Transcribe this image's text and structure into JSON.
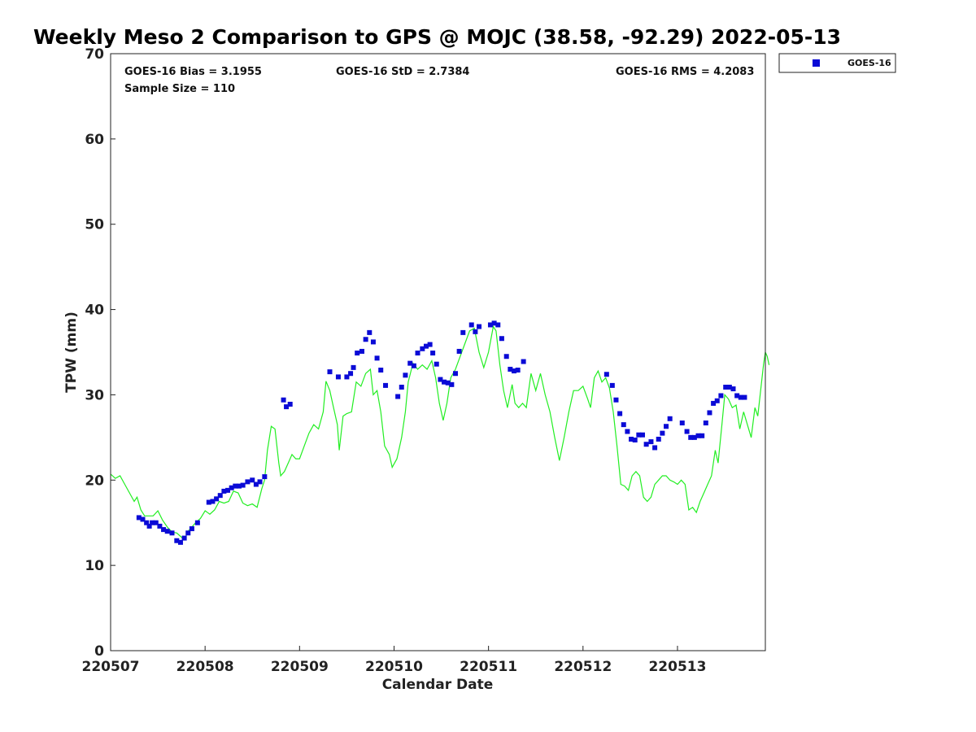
{
  "chart_data": {
    "type": "scatter",
    "title": "Weekly Meso 2 Comparison to GPS @ MOJC (38.58, -92.29) 2022-05-13",
    "xlabel": "Calendar Date",
    "ylabel": "TPW (mm)",
    "xlim": [
      220507.0,
      220513.93
    ],
    "ylim": [
      0,
      70
    ],
    "x_ticks": [
      "220507",
      "220508",
      "220509",
      "220510",
      "220511",
      "220512",
      "220513"
    ],
    "y_ticks": [
      0,
      10,
      20,
      30,
      40,
      50,
      60,
      70
    ],
    "grid": false,
    "legend_position": "top-right, outside plot",
    "stats": {
      "bias": "GOES-16 Bias = 3.1955",
      "std": "GOES-16 StD = 2.7384",
      "rms": "GOES-16 RMS = 4.2083",
      "sample": "Sample Size = 110"
    },
    "series": [
      {
        "name": "GOES-16",
        "kind": "scatter",
        "color": "#0a0ad6",
        "marker": "square",
        "points": [
          [
            220507.3,
            15.6
          ],
          [
            220507.34,
            15.4
          ],
          [
            220507.38,
            15.0
          ],
          [
            220507.41,
            14.6
          ],
          [
            220507.44,
            15.0
          ],
          [
            220507.48,
            15.0
          ],
          [
            220507.52,
            14.6
          ],
          [
            220507.56,
            14.2
          ],
          [
            220507.6,
            14.0
          ],
          [
            220507.65,
            13.8
          ],
          [
            220507.7,
            12.9
          ],
          [
            220507.74,
            12.7
          ],
          [
            220507.78,
            13.2
          ],
          [
            220507.82,
            13.8
          ],
          [
            220507.86,
            14.3
          ],
          [
            220507.92,
            15.0
          ],
          [
            220508.04,
            17.4
          ],
          [
            220508.08,
            17.5
          ],
          [
            220508.12,
            17.8
          ],
          [
            220508.16,
            18.2
          ],
          [
            220508.2,
            18.7
          ],
          [
            220508.24,
            18.8
          ],
          [
            220508.28,
            19.1
          ],
          [
            220508.32,
            19.3
          ],
          [
            220508.36,
            19.3
          ],
          [
            220508.4,
            19.4
          ],
          [
            220508.45,
            19.8
          ],
          [
            220508.5,
            20.0
          ],
          [
            220508.54,
            19.5
          ],
          [
            220508.58,
            19.8
          ],
          [
            220508.63,
            20.4
          ],
          [
            220508.83,
            29.4
          ],
          [
            220508.86,
            28.6
          ],
          [
            220508.9,
            28.9
          ],
          [
            220509.32,
            32.7
          ],
          [
            220509.41,
            32.1
          ],
          [
            220509.5,
            32.1
          ],
          [
            220509.54,
            32.5
          ],
          [
            220509.57,
            33.2
          ],
          [
            220509.61,
            34.9
          ],
          [
            220509.66,
            35.1
          ],
          [
            220509.7,
            36.5
          ],
          [
            220509.74,
            37.3
          ],
          [
            220509.78,
            36.2
          ],
          [
            220509.82,
            34.3
          ],
          [
            220509.86,
            32.9
          ],
          [
            220509.91,
            31.1
          ],
          [
            220510.04,
            29.8
          ],
          [
            220510.08,
            30.9
          ],
          [
            220510.12,
            32.3
          ],
          [
            220510.17,
            33.7
          ],
          [
            220510.21,
            33.4
          ],
          [
            220510.25,
            34.9
          ],
          [
            220510.3,
            35.4
          ],
          [
            220510.34,
            35.7
          ],
          [
            220510.38,
            35.9
          ],
          [
            220510.41,
            34.9
          ],
          [
            220510.45,
            33.6
          ],
          [
            220510.49,
            31.8
          ],
          [
            220510.53,
            31.5
          ],
          [
            220510.57,
            31.4
          ],
          [
            220510.61,
            31.2
          ],
          [
            220510.65,
            32.5
          ],
          [
            220510.69,
            35.1
          ],
          [
            220510.73,
            37.3
          ],
          [
            220510.82,
            38.2
          ],
          [
            220510.86,
            37.4
          ],
          [
            220510.9,
            38.0
          ],
          [
            220511.02,
            38.2
          ],
          [
            220511.06,
            38.4
          ],
          [
            220511.1,
            38.2
          ],
          [
            220511.14,
            36.6
          ],
          [
            220511.19,
            34.5
          ],
          [
            220511.23,
            33.0
          ],
          [
            220511.27,
            32.8
          ],
          [
            220511.31,
            32.9
          ],
          [
            220511.37,
            33.9
          ],
          [
            220512.25,
            32.4
          ],
          [
            220512.31,
            31.1
          ],
          [
            220512.35,
            29.4
          ],
          [
            220512.39,
            27.8
          ],
          [
            220512.43,
            26.5
          ],
          [
            220512.47,
            25.7
          ],
          [
            220512.51,
            24.8
          ],
          [
            220512.55,
            24.7
          ],
          [
            220512.59,
            25.3
          ],
          [
            220512.63,
            25.3
          ],
          [
            220512.67,
            24.2
          ],
          [
            220512.72,
            24.5
          ],
          [
            220512.76,
            23.8
          ],
          [
            220512.8,
            24.8
          ],
          [
            220512.84,
            25.5
          ],
          [
            220512.88,
            26.3
          ],
          [
            220512.92,
            27.2
          ],
          [
            220513.05,
            26.7
          ],
          [
            220513.1,
            25.7
          ],
          [
            220513.14,
            25.0
          ],
          [
            220513.18,
            25.0
          ],
          [
            220513.22,
            25.2
          ],
          [
            220513.26,
            25.2
          ],
          [
            220513.3,
            26.7
          ],
          [
            220513.34,
            27.9
          ],
          [
            220513.38,
            29.0
          ],
          [
            220513.42,
            29.3
          ],
          [
            220513.46,
            29.9
          ],
          [
            220513.51,
            30.9
          ],
          [
            220513.55,
            30.9
          ],
          [
            220513.59,
            30.7
          ],
          [
            220513.63,
            29.9
          ],
          [
            220513.67,
            29.7
          ],
          [
            220513.71,
            29.7
          ]
        ]
      },
      {
        "kind": "line",
        "color": "#22ee22",
        "points": [
          [
            220507.0,
            20.7
          ],
          [
            220507.05,
            20.2
          ],
          [
            220507.1,
            20.5
          ],
          [
            220507.15,
            19.5
          ],
          [
            220507.2,
            18.5
          ],
          [
            220507.25,
            17.5
          ],
          [
            220507.28,
            18.0
          ],
          [
            220507.32,
            16.5
          ],
          [
            220507.36,
            15.8
          ],
          [
            220507.4,
            15.8
          ],
          [
            220507.45,
            15.8
          ],
          [
            220507.5,
            16.4
          ],
          [
            220507.55,
            15.3
          ],
          [
            220507.6,
            14.5
          ],
          [
            220507.65,
            13.9
          ],
          [
            220507.7,
            13.8
          ],
          [
            220507.75,
            13.3
          ],
          [
            220507.78,
            13.0
          ],
          [
            220507.82,
            14.0
          ],
          [
            220507.86,
            14.5
          ],
          [
            220507.9,
            15.0
          ],
          [
            220507.95,
            15.5
          ],
          [
            220508.0,
            16.4
          ],
          [
            220508.05,
            16.0
          ],
          [
            220508.1,
            16.5
          ],
          [
            220508.15,
            17.5
          ],
          [
            220508.2,
            17.3
          ],
          [
            220508.25,
            17.5
          ],
          [
            220508.3,
            18.7
          ],
          [
            220508.35,
            18.5
          ],
          [
            220508.4,
            17.3
          ],
          [
            220508.45,
            17.0
          ],
          [
            220508.5,
            17.2
          ],
          [
            220508.55,
            16.8
          ],
          [
            220508.6,
            19.0
          ],
          [
            220508.63,
            20.0
          ],
          [
            220508.66,
            23.5
          ],
          [
            220508.7,
            26.3
          ],
          [
            220508.74,
            26.0
          ],
          [
            220508.78,
            22.0
          ],
          [
            220508.8,
            20.5
          ],
          [
            220508.84,
            21.0
          ],
          [
            220508.88,
            22.0
          ],
          [
            220508.92,
            23.0
          ],
          [
            220508.96,
            22.5
          ],
          [
            220509.0,
            22.5
          ],
          [
            220509.05,
            24.0
          ],
          [
            220509.1,
            25.5
          ],
          [
            220509.15,
            26.5
          ],
          [
            220509.2,
            26.0
          ],
          [
            220509.25,
            28.0
          ],
          [
            220509.28,
            31.6
          ],
          [
            220509.32,
            30.5
          ],
          [
            220509.36,
            28.5
          ],
          [
            220509.4,
            26.5
          ],
          [
            220509.42,
            23.5
          ],
          [
            220509.46,
            27.5
          ],
          [
            220509.5,
            27.8
          ],
          [
            220509.55,
            28.0
          ],
          [
            220509.6,
            31.5
          ],
          [
            220509.65,
            31.0
          ],
          [
            220509.7,
            32.5
          ],
          [
            220509.75,
            33.0
          ],
          [
            220509.78,
            30.0
          ],
          [
            220509.82,
            30.5
          ],
          [
            220509.86,
            28.0
          ],
          [
            220509.9,
            24.0
          ],
          [
            220509.95,
            23.0
          ],
          [
            220509.98,
            21.5
          ],
          [
            220510.03,
            22.5
          ],
          [
            220510.08,
            25.0
          ],
          [
            220510.12,
            28.0
          ],
          [
            220510.15,
            31.5
          ],
          [
            220510.2,
            33.7
          ],
          [
            220510.25,
            33.0
          ],
          [
            220510.3,
            33.5
          ],
          [
            220510.35,
            33.0
          ],
          [
            220510.4,
            34.0
          ],
          [
            220510.44,
            32.0
          ],
          [
            220510.48,
            29.0
          ],
          [
            220510.52,
            27.0
          ],
          [
            220510.56,
            29.0
          ],
          [
            220510.6,
            32.0
          ],
          [
            220510.65,
            33.0
          ],
          [
            220510.7,
            34.5
          ],
          [
            220510.75,
            36.0
          ],
          [
            220510.8,
            37.5
          ],
          [
            220510.85,
            37.8
          ],
          [
            220510.9,
            35.0
          ],
          [
            220510.95,
            33.2
          ],
          [
            220511.0,
            35.0
          ],
          [
            220511.05,
            38.0
          ],
          [
            220511.08,
            37.5
          ],
          [
            220511.12,
            33.5
          ],
          [
            220511.16,
            30.5
          ],
          [
            220511.2,
            28.5
          ],
          [
            220511.25,
            31.2
          ],
          [
            220511.28,
            29.0
          ],
          [
            220511.32,
            28.5
          ],
          [
            220511.36,
            29.0
          ],
          [
            220511.4,
            28.5
          ],
          [
            220511.45,
            32.5
          ],
          [
            220511.5,
            30.5
          ],
          [
            220511.55,
            32.5
          ],
          [
            220511.6,
            30.0
          ],
          [
            220511.65,
            28.0
          ],
          [
            220511.7,
            25.0
          ],
          [
            220511.75,
            22.3
          ],
          [
            220511.8,
            25.0
          ],
          [
            220511.85,
            28.0
          ],
          [
            220511.9,
            30.5
          ],
          [
            220511.95,
            30.5
          ],
          [
            220512.0,
            31.0
          ],
          [
            220512.05,
            29.5
          ],
          [
            220512.08,
            28.5
          ],
          [
            220512.12,
            32.0
          ],
          [
            220512.16,
            32.8
          ],
          [
            220512.2,
            31.5
          ],
          [
            220512.24,
            32.0
          ],
          [
            220512.28,
            30.8
          ],
          [
            220512.32,
            28.0
          ],
          [
            220512.36,
            24.0
          ],
          [
            220512.4,
            19.5
          ],
          [
            220512.44,
            19.3
          ],
          [
            220512.48,
            18.8
          ],
          [
            220512.52,
            20.5
          ],
          [
            220512.56,
            21.0
          ],
          [
            220512.6,
            20.5
          ],
          [
            220512.64,
            18.0
          ],
          [
            220512.68,
            17.5
          ],
          [
            220512.72,
            18.0
          ],
          [
            220512.76,
            19.5
          ],
          [
            220512.8,
            20.0
          ],
          [
            220512.84,
            20.5
          ],
          [
            220512.88,
            20.5
          ],
          [
            220512.92,
            20.0
          ],
          [
            220512.96,
            19.8
          ],
          [
            220513.0,
            19.5
          ],
          [
            220513.04,
            20.0
          ],
          [
            220513.08,
            19.5
          ],
          [
            220513.12,
            16.5
          ],
          [
            220513.16,
            16.8
          ],
          [
            220513.2,
            16.2
          ],
          [
            220513.24,
            17.5
          ],
          [
            220513.28,
            18.5
          ],
          [
            220513.32,
            19.5
          ],
          [
            220513.36,
            20.5
          ],
          [
            220513.4,
            23.5
          ],
          [
            220513.43,
            22.0
          ],
          [
            220513.47,
            26.5
          ],
          [
            220513.5,
            30.0
          ],
          [
            220513.54,
            29.5
          ],
          [
            220513.58,
            28.5
          ],
          [
            220513.62,
            28.8
          ],
          [
            220513.66,
            26.0
          ],
          [
            220513.7,
            28.0
          ],
          [
            220513.74,
            26.5
          ],
          [
            220513.78,
            25.0
          ],
          [
            220513.82,
            28.5
          ],
          [
            220513.85,
            27.5
          ],
          [
            220513.88,
            30.5
          ],
          [
            220513.91,
            33.5
          ],
          [
            220513.93,
            35.0
          ],
          [
            220513.95,
            34.5
          ],
          [
            220513.97,
            33.5
          ]
        ]
      }
    ]
  }
}
